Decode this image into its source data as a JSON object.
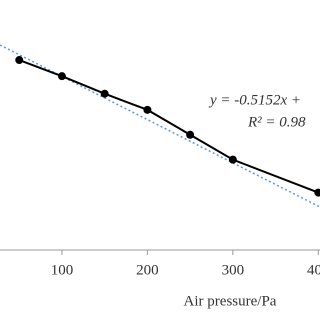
{
  "chart_data": {
    "type": "line",
    "x_label": "Air pressure/Pa",
    "x": [
      50,
      100,
      150,
      200,
      250,
      300,
      400
    ],
    "series": [
      {
        "color": "#000000",
        "values": [
          230,
          208,
          184,
          162,
          128,
          94,
          49
        ]
      }
    ],
    "xlim": [
      27.5,
      402
    ],
    "xticks": [
      100,
      200,
      300,
      400
    ],
    "ylim": [
      -125,
      312
    ],
    "trend_color": "#5b9bd5",
    "annotations": [
      "y = -0.5152x +",
      "R² = 0.98"
    ]
  }
}
